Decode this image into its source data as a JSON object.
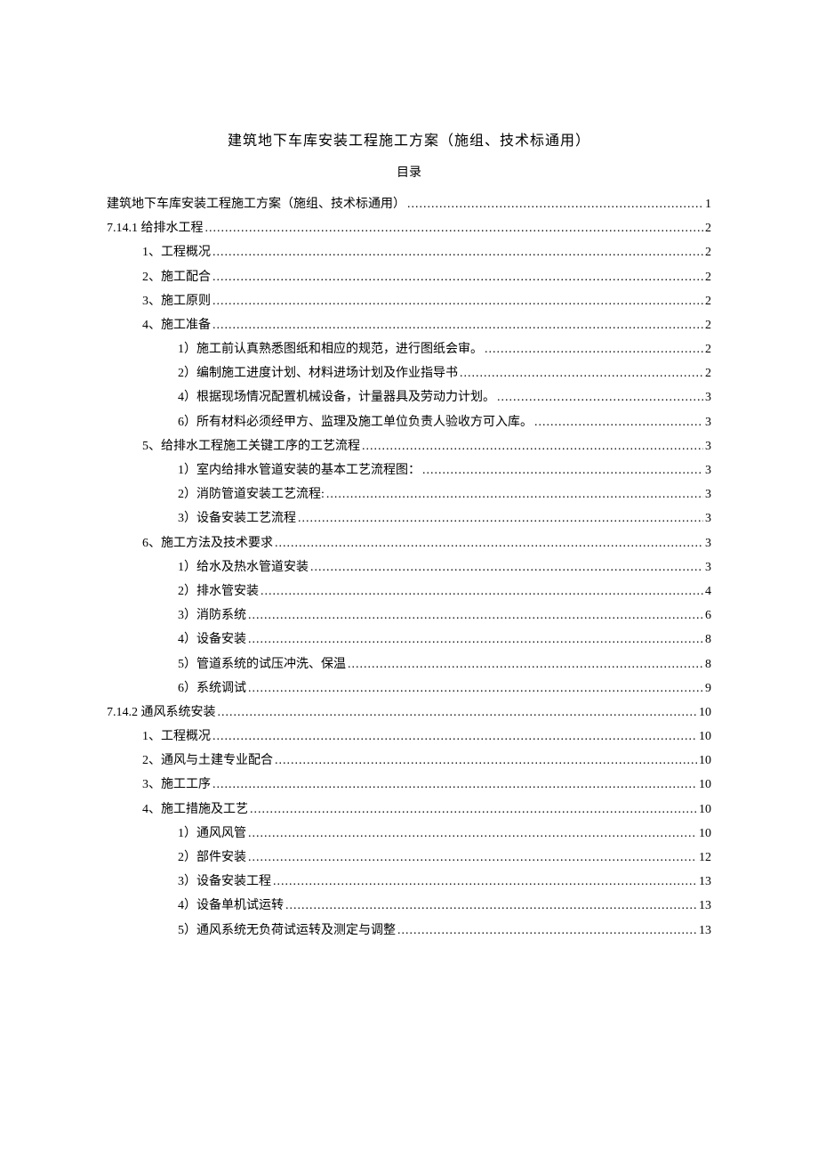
{
  "doc": {
    "title": "建筑地下车库安装工程施工方案（施组、技术标通用）",
    "subtitle": "目录"
  },
  "toc": [
    {
      "label": "建筑地下车库安装工程施工方案（施组、技术标通用）",
      "page": "1",
      "indent": 0
    },
    {
      "label": "7.14.1 给排水工程",
      "page": "2",
      "indent": 0
    },
    {
      "label": "1、工程概况",
      "page": "2",
      "indent": 1
    },
    {
      "label": "2、施工配合",
      "page": "2",
      "indent": 1
    },
    {
      "label": "3、施工原则",
      "page": "2",
      "indent": 1
    },
    {
      "label": "4、施工准备",
      "page": "2",
      "indent": 1
    },
    {
      "label": "1）施工前认真熟悉图纸和相应的规范，进行图纸会审。",
      "page": "2",
      "indent": 2
    },
    {
      "label": "2）编制施工进度计划、材料进场计划及作业指导书",
      "page": "2",
      "indent": 2
    },
    {
      "label": "4）根据现场情况配置机械设备，计量器具及劳动力计划。",
      "page": "3",
      "indent": 2
    },
    {
      "label": "6）所有材料必须经甲方、监理及施工单位负责人验收方可入库。",
      "page": "3",
      "indent": 2
    },
    {
      "label": "5、给排水工程施工关键工序的工艺流程",
      "page": "3",
      "indent": 1
    },
    {
      "label": "1）室内给排水管道安装的基本工艺流程图：",
      "page": "3",
      "indent": 2
    },
    {
      "label": "2）消防管道安装工艺流程:",
      "page": "3",
      "indent": 2
    },
    {
      "label": "3）设备安装工艺流程",
      "page": "3",
      "indent": 2
    },
    {
      "label": "6、施工方法及技术要求",
      "page": "3",
      "indent": 1
    },
    {
      "label": "1）给水及热水管道安装",
      "page": "3",
      "indent": 2
    },
    {
      "label": "2）排水管安装",
      "page": "4",
      "indent": 2
    },
    {
      "label": "3）消防系统",
      "page": "6",
      "indent": 2
    },
    {
      "label": "4）设备安装",
      "page": "8",
      "indent": 2
    },
    {
      "label": "5）管道系统的试压冲洗、保温",
      "page": "8",
      "indent": 2
    },
    {
      "label": "6）系统调试",
      "page": "9",
      "indent": 2
    },
    {
      "label": "7.14.2 通风系统安装",
      "page": "10",
      "indent": 0
    },
    {
      "label": "1、工程概况",
      "page": "10",
      "indent": 1
    },
    {
      "label": "2、通风与土建专业配合",
      "page": "10",
      "indent": 1
    },
    {
      "label": "3、施工工序",
      "page": "10",
      "indent": 1
    },
    {
      "label": "4、施工措施及工艺",
      "page": "10",
      "indent": 1
    },
    {
      "label": "1）通风风管",
      "page": "10",
      "indent": 2
    },
    {
      "label": "2）部件安装",
      "page": "12",
      "indent": 2
    },
    {
      "label": "3）设备安装工程",
      "page": "13",
      "indent": 2
    },
    {
      "label": "4）设备单机试运转",
      "page": "13",
      "indent": 2
    },
    {
      "label": "5）通风系统无负荷试运转及测定与调整",
      "page": "13",
      "indent": 2
    }
  ]
}
